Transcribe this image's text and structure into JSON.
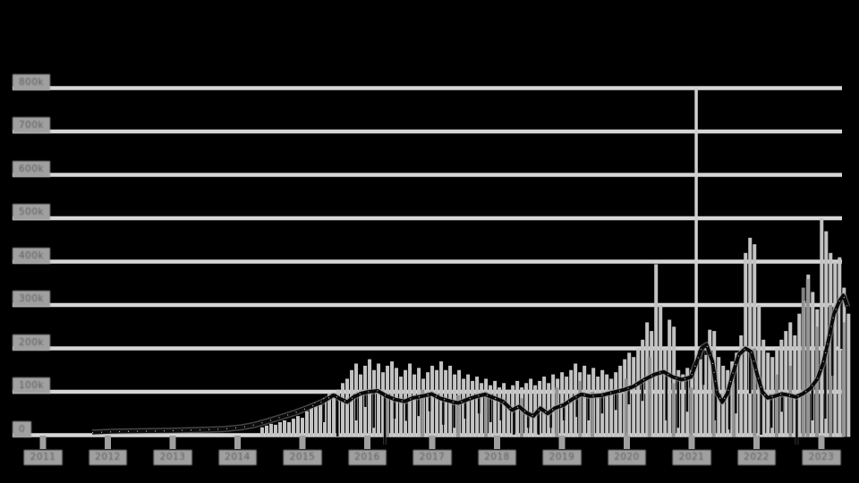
{
  "chart_data": {
    "type": "composite",
    "title": "",
    "x_axis": {
      "labels": [
        "2011",
        "2012",
        "2013",
        "2014",
        "2015",
        "2016",
        "2017",
        "2018",
        "2019",
        "2020",
        "2021",
        "2022",
        "2023"
      ],
      "tick_years": [
        2011,
        2012,
        2013,
        2014,
        2015,
        2016,
        2017,
        2018,
        2019,
        2020,
        2021,
        2022,
        2023
      ],
      "range_years": [
        2011,
        2023.45
      ]
    },
    "y_axis": {
      "labels": [
        "800k",
        "700k",
        "600k",
        "500k",
        "400k",
        "300k",
        "200k",
        "100k",
        "0"
      ],
      "values_k": [
        800,
        700,
        600,
        500,
        400,
        300,
        200,
        100,
        0
      ],
      "range_k": [
        0,
        800
      ]
    },
    "grid": true,
    "legend": "none",
    "crosshair_year": 2021.07,
    "colors": {
      "background": "#000000",
      "grid": "#d6d6d6",
      "axis": "#d6d6d6",
      "bar": "#c3c3c3",
      "bar_dark": "#8f8f8f",
      "line": "#0a0a0a",
      "line_glow": "#9a9a9a",
      "speckle": "#ffffff",
      "tick": "#a0a0a0",
      "label_chip": "#a0a0a0",
      "label_text": "#5f5f5f",
      "crosshair": "#cfcfcf"
    },
    "series": [
      {
        "name": "volume-bars",
        "type": "bar",
        "start_year": 2014.379,
        "step_years": 0.069,
        "values_k": [
          18,
          22,
          26,
          24,
          30,
          34,
          30,
          38,
          44,
          40,
          55,
          65,
          75,
          70,
          85,
          95,
          90,
          105,
          120,
          130,
          150,
          165,
          140,
          160,
          175,
          150,
          165,
          145,
          160,
          170,
          155,
          135,
          150,
          165,
          140,
          155,
          130,
          145,
          160,
          150,
          170,
          150,
          160,
          140,
          150,
          130,
          140,
          125,
          135,
          120,
          130,
          115,
          125,
          110,
          120,
          105,
          115,
          125,
          110,
          120,
          130,
          115,
          125,
          135,
          120,
          140,
          130,
          145,
          135,
          150,
          165,
          145,
          160,
          140,
          155,
          135,
          150,
          140,
          130,
          145,
          160,
          175,
          190,
          180,
          200,
          220,
          260,
          240,
          394,
          300,
          200,
          266,
          250,
          150,
          140,
          155,
          150,
          160,
          175,
          185,
          243,
          240,
          180,
          160,
          150,
          170,
          190,
          230,
          420,
          455,
          440,
          300,
          220,
          190,
          180,
          200,
          220,
          240,
          260,
          230,
          280,
          310,
          370,
          330,
          290,
          500,
          470,
          420,
          400,
          410,
          340,
          280
        ]
      },
      {
        "name": "volume-bars-dark",
        "type": "bar",
        "points": [
          [
            2016.31,
            95
          ],
          [
            2016.85,
            105
          ],
          [
            2017.4,
            92
          ],
          [
            2017.83,
            100
          ],
          [
            2018.38,
            85
          ],
          [
            2018.92,
            110
          ],
          [
            2019.28,
            125
          ],
          [
            2019.47,
            100
          ],
          [
            2019.99,
            130
          ],
          [
            2020.35,
            180
          ],
          [
            2020.72,
            120
          ],
          [
            2020.99,
            110
          ],
          [
            2021.34,
            150
          ],
          [
            2021.65,
            120
          ],
          [
            2021.97,
            200
          ],
          [
            2022.31,
            140
          ],
          [
            2022.52,
            160
          ],
          [
            2022.72,
            340
          ],
          [
            2022.79,
            360
          ],
          [
            2022.93,
            250
          ],
          [
            2023.14,
            300
          ],
          [
            2023.34,
            260
          ]
        ]
      },
      {
        "name": "price-line",
        "type": "line",
        "points": [
          [
            2011.76,
            6
          ],
          [
            2012.13,
            8
          ],
          [
            2012.54,
            9
          ],
          [
            2012.96,
            10
          ],
          [
            2013.37,
            12
          ],
          [
            2013.79,
            14
          ],
          [
            2014.06,
            18
          ],
          [
            2014.27,
            24
          ],
          [
            2014.48,
            33
          ],
          [
            2014.68,
            42
          ],
          [
            2014.89,
            52
          ],
          [
            2015.1,
            64
          ],
          [
            2015.3,
            76
          ],
          [
            2015.48,
            92
          ],
          [
            2015.58,
            84
          ],
          [
            2015.69,
            76
          ],
          [
            2015.79,
            88
          ],
          [
            2015.9,
            96
          ],
          [
            2016.02,
            100
          ],
          [
            2016.16,
            102
          ],
          [
            2016.3,
            90
          ],
          [
            2016.43,
            82
          ],
          [
            2016.57,
            78
          ],
          [
            2016.71,
            86
          ],
          [
            2016.85,
            90
          ],
          [
            2016.99,
            95
          ],
          [
            2017.12,
            85
          ],
          [
            2017.26,
            79
          ],
          [
            2017.4,
            74
          ],
          [
            2017.54,
            82
          ],
          [
            2017.68,
            89
          ],
          [
            2017.81,
            94
          ],
          [
            2017.95,
            86
          ],
          [
            2018.09,
            78
          ],
          [
            2018.23,
            58
          ],
          [
            2018.34,
            66
          ],
          [
            2018.45,
            52
          ],
          [
            2018.56,
            44
          ],
          [
            2018.67,
            62
          ],
          [
            2018.78,
            50
          ],
          [
            2018.89,
            62
          ],
          [
            2019.03,
            70
          ],
          [
            2019.17,
            84
          ],
          [
            2019.3,
            94
          ],
          [
            2019.44,
            90
          ],
          [
            2019.61,
            92
          ],
          [
            2019.77,
            98
          ],
          [
            2019.94,
            104
          ],
          [
            2020.1,
            112
          ],
          [
            2020.27,
            128
          ],
          [
            2020.43,
            140
          ],
          [
            2020.57,
            146
          ],
          [
            2020.71,
            134
          ],
          [
            2020.85,
            128
          ],
          [
            2020.99,
            134
          ],
          [
            2021.08,
            170
          ],
          [
            2021.15,
            200
          ],
          [
            2021.23,
            208
          ],
          [
            2021.32,
            170
          ],
          [
            2021.39,
            98
          ],
          [
            2021.47,
            76
          ],
          [
            2021.55,
            96
          ],
          [
            2021.63,
            140
          ],
          [
            2021.73,
            186
          ],
          [
            2021.83,
            200
          ],
          [
            2021.92,
            192
          ],
          [
            2022.01,
            140
          ],
          [
            2022.09,
            100
          ],
          [
            2022.17,
            86
          ],
          [
            2022.28,
            90
          ],
          [
            2022.39,
            95
          ],
          [
            2022.5,
            92
          ],
          [
            2022.61,
            88
          ],
          [
            2022.72,
            96
          ],
          [
            2022.83,
            108
          ],
          [
            2022.94,
            130
          ],
          [
            2023.03,
            168
          ],
          [
            2023.11,
            220
          ],
          [
            2023.19,
            278
          ],
          [
            2023.28,
            310
          ],
          [
            2023.34,
            322
          ],
          [
            2023.4,
            295
          ]
        ]
      },
      {
        "name": "wicks",
        "type": "segments",
        "points": [
          [
            2015.33,
            76,
            30
          ],
          [
            2015.54,
            90,
            -3
          ],
          [
            2015.83,
            88,
            34
          ],
          [
            2015.97,
            98,
            65
          ],
          [
            2016.1,
            102,
            17
          ],
          [
            2016.27,
            92,
            -22
          ],
          [
            2016.42,
            82,
            38
          ],
          [
            2016.6,
            78,
            33
          ],
          [
            2016.79,
            87,
            44
          ],
          [
            2016.96,
            94,
            55
          ],
          [
            2017.17,
            83,
            24
          ],
          [
            2017.34,
            77,
            17
          ],
          [
            2017.51,
            80,
            38
          ],
          [
            2017.72,
            90,
            50
          ],
          [
            2017.9,
            93,
            30
          ],
          [
            2018.06,
            80,
            34
          ],
          [
            2018.26,
            60,
            1
          ],
          [
            2018.48,
            50,
            17
          ],
          [
            2018.64,
            58,
            1
          ],
          [
            2018.83,
            55,
            17
          ],
          [
            2019.03,
            70,
            34
          ],
          [
            2019.23,
            86,
            42
          ],
          [
            2019.41,
            92,
            34
          ],
          [
            2019.62,
            92,
            50
          ],
          [
            2019.83,
            99,
            58
          ],
          [
            2020.03,
            107,
            71
          ],
          [
            2020.24,
            125,
            79
          ],
          [
            2020.61,
            145,
            34
          ],
          [
            2020.79,
            130,
            17
          ],
          [
            2020.93,
            131,
            54
          ],
          [
            2021.18,
            203,
            116
          ],
          [
            2021.37,
            105,
            34
          ],
          [
            2021.58,
            110,
            13
          ],
          [
            2021.68,
            165,
            50
          ],
          [
            2021.9,
            195,
            96
          ],
          [
            2022.07,
            115,
            1
          ],
          [
            2022.23,
            87,
            17
          ],
          [
            2022.39,
            95,
            54
          ],
          [
            2022.62,
            89,
            -22
          ],
          [
            2022.86,
            110,
            34
          ],
          [
            2023.06,
            190,
            38
          ],
          [
            2023.17,
            255,
            137
          ],
          [
            2023.31,
            315,
            199
          ]
        ]
      }
    ]
  }
}
